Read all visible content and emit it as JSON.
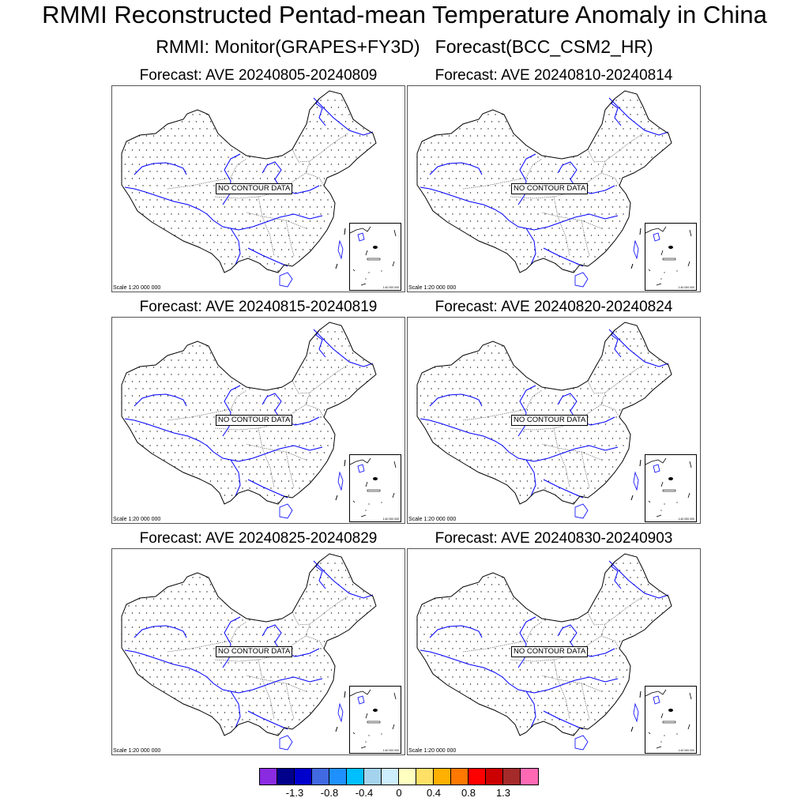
{
  "title": "RMMI Reconstructed Pentad-mean Temperature Anomaly in China",
  "subtitle": "RMMI: Monitor(GRAPES+FY3D)   Forecast(BCC_CSM2_HR)",
  "panels": [
    {
      "title": "Forecast: AVE 20240805-20240809",
      "message": "NO CONTOUR DATA",
      "scale": "Scale 1:20 000 000",
      "inset_scale": "1:40 000 000"
    },
    {
      "title": "Forecast: AVE 20240810-20240814",
      "message": "NO CONTOUR DATA",
      "scale": "Scale 1:20 000 000",
      "inset_scale": "1:40 000 000"
    },
    {
      "title": "Forecast: AVE 20240815-20240819",
      "message": "NO CONTOUR DATA",
      "scale": "Scale 1:20 000 000",
      "inset_scale": "1:40 000 000"
    },
    {
      "title": "Forecast: AVE 20240820-20240824",
      "message": "NO CONTOUR DATA",
      "scale": "Scale 1:20 000 000",
      "inset_scale": "1:40 000 000"
    },
    {
      "title": "Forecast: AVE 20240825-20240829",
      "message": "NO CONTOUR DATA",
      "scale": "Scale 1:20 000 000",
      "inset_scale": "1:40 000 000"
    },
    {
      "title": "Forecast: AVE 20240830-20240903",
      "message": "NO CONTOUR DATA",
      "scale": "Scale 1:20 000 000",
      "inset_scale": "1:40 000 000"
    }
  ],
  "legend": {
    "colors": [
      "#8a2be2",
      "#00008b",
      "#0000cd",
      "#4169e1",
      "#1e90ff",
      "#00bfff",
      "#a4d3ee",
      "#cdeeff",
      "#ffffc0",
      "#ffe066",
      "#ffb000",
      "#ff7800",
      "#ff0000",
      "#cc0000",
      "#a52a2a",
      "#ff69b4"
    ],
    "labels": [
      "-1.3",
      "-0.8",
      "-0.4",
      "0",
      "0.4",
      "0.8",
      "1.3"
    ]
  },
  "colors": {
    "border": "#000000",
    "rivers": "#0000ff",
    "provinces": "#555555"
  }
}
